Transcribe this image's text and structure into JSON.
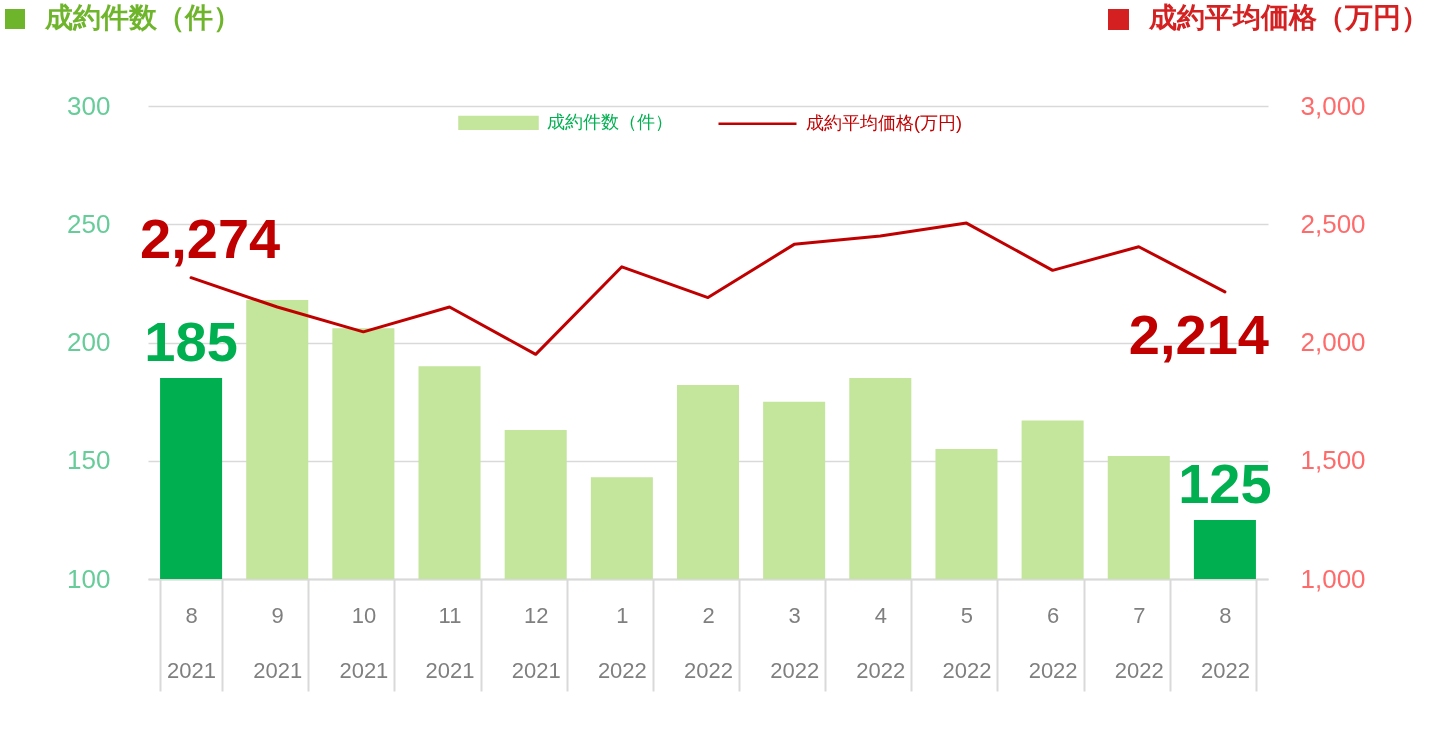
{
  "chart_data": {
    "type": "bar",
    "ylabel": "成約件数（件）",
    "y2label": "成約平均価格（万円）",
    "categories": [
      "8\n2021",
      "9\n2021",
      "10\n2021",
      "11\n2021",
      "12\n2021",
      "1\n2022",
      "2\n2022",
      "3\n2022",
      "4\n2022",
      "5\n2022",
      "6\n2022",
      "7\n2022",
      "8\n2022"
    ],
    "series": [
      {
        "name": "成約件数（件）",
        "color": "#c3e59c",
        "colors": [
          "#00b050",
          "#c3e59c",
          "#c3e59c",
          "#c3e59c",
          "#c3e59c",
          "#c3e59c",
          "#c3e59c",
          "#c3e59c",
          "#c3e59c",
          "#c3e59c",
          "#c3e59c",
          "#c3e59c",
          "#00b050"
        ],
        "values": [
          185,
          218,
          206,
          190,
          163,
          143,
          182,
          175,
          185,
          155,
          167,
          152,
          125
        ],
        "value_labels": [
          "185",
          null,
          null,
          null,
          null,
          null,
          null,
          null,
          null,
          null,
          null,
          null,
          "125"
        ]
      },
      {
        "name": "成約平均価格(万円)",
        "type": "line",
        "axis": "y2",
        "color": "#c00000",
        "values": [
          2274,
          2150,
          2045,
          2150,
          1950,
          2320,
          2190,
          2415,
          2450,
          2505,
          2305,
          2405,
          2214
        ],
        "value_labels": [
          "2,274",
          null,
          null,
          null,
          null,
          null,
          null,
          null,
          null,
          null,
          null,
          null,
          "2,214"
        ]
      }
    ],
    "ylim": [
      100,
      300
    ],
    "yticks": [
      100,
      150,
      200,
      250,
      300
    ],
    "y2lim": [
      1000,
      3000
    ],
    "y2ticks": [
      {
        "value": 1000,
        "label": "1,000"
      },
      {
        "value": 1500,
        "label": "1,500"
      },
      {
        "value": 2000,
        "label": "2,000"
      },
      {
        "value": 2500,
        "label": "2,500"
      },
      {
        "value": 3000,
        "label": "3,000"
      }
    ],
    "grid": "y",
    "legend": "top"
  }
}
